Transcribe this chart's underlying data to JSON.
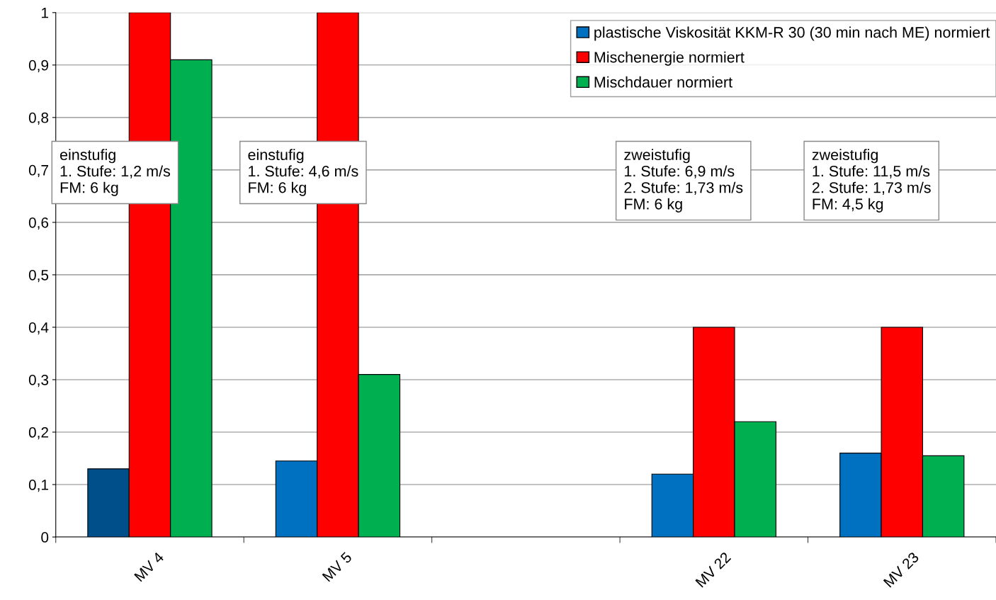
{
  "chart_data": {
    "type": "bar",
    "categories": [
      "MV 4",
      "MV 5",
      null,
      "MV 22",
      "MV 23"
    ],
    "series": [
      {
        "name": "plastische Viskosität KKM-R 30 (30 min nach ME) normiert",
        "color": "#0070c0",
        "colors": [
          "#004f8a",
          "#0070c0",
          "#0070c0",
          "#0070c0",
          "#0070c0"
        ],
        "values": [
          0.13,
          0.145,
          null,
          0.12,
          0.16
        ]
      },
      {
        "name": "Mischenergie normiert",
        "color": "#ff0000",
        "values": [
          1,
          1,
          null,
          0.4,
          0.4
        ]
      },
      {
        "name": "Mischdauer normiert",
        "color": "#00b050",
        "values": [
          0.91,
          0.31,
          null,
          0.22,
          0.155
        ]
      }
    ],
    "ylim": [
      0,
      1
    ],
    "yticks": [
      0,
      {
        "value": 0.1,
        "label": "0,1"
      },
      {
        "value": 0.2,
        "label": "0,2"
      },
      {
        "value": 0.3,
        "label": "0,3"
      },
      {
        "value": 0.4,
        "label": "0,4"
      },
      {
        "value": 0.5,
        "label": "0,5"
      },
      {
        "value": 0.6,
        "label": "0,6"
      },
      {
        "value": 0.7,
        "label": "0,7"
      },
      {
        "value": 0.8,
        "label": "0,8"
      },
      {
        "value": 0.9,
        "label": "0,9"
      },
      1
    ],
    "grid": "y",
    "legend": "top right",
    "annotations": [
      "einstufig\n1. Stufe: 1,2 m/s\nFM: 6 kg",
      "einstufig\n1. Stufe: 4,6 m/s\nFM: 6 kg",
      "zweistufig\n1. Stufe: 6,9 m/s\n2. Stufe: 1,73 m/s\nFM: 6 kg",
      "zweistufig\n1. Stufe: 11,5 m/s\n2. Stufe: 1,73 m/s\nFM: 4,5 kg"
    ]
  }
}
